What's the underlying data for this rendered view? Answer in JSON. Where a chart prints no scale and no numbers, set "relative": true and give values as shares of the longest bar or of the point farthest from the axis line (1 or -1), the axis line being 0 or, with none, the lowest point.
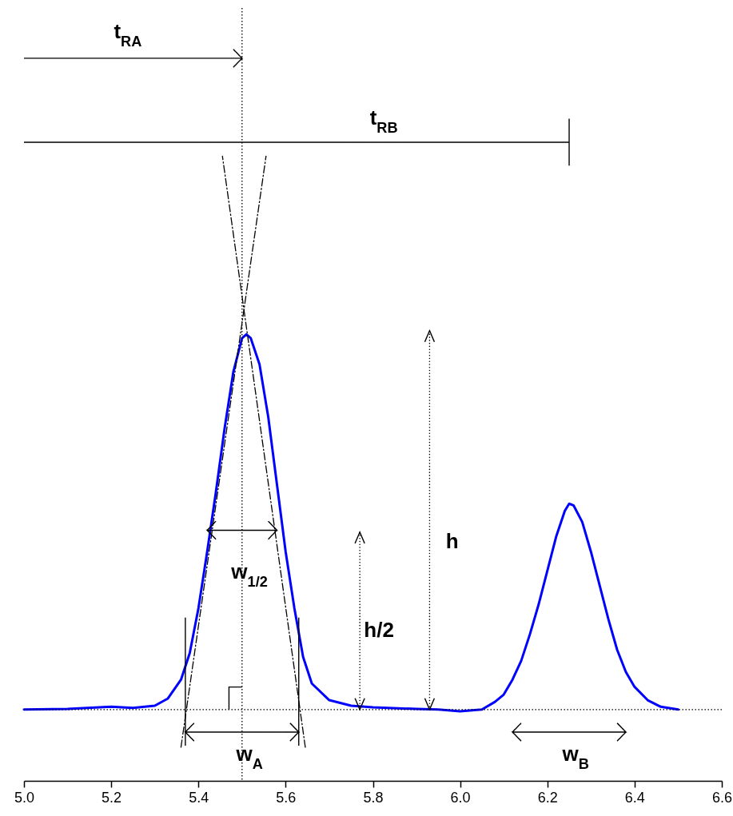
{
  "chart_data": {
    "type": "line",
    "relative": true,
    "xlim": [
      5.0,
      6.6
    ],
    "xticks": [
      {
        "value": 5.0,
        "label": "5.0"
      },
      {
        "value": 5.2,
        "label": "5.2"
      },
      {
        "value": 5.4,
        "label": "5.4"
      },
      {
        "value": 5.6,
        "label": "5.6"
      },
      {
        "value": 5.8,
        "label": "5.8"
      },
      {
        "value": 6.0,
        "label": "6.0"
      },
      {
        "value": 6.2,
        "label": "6.2"
      },
      {
        "value": 6.4,
        "label": "6.4"
      },
      {
        "value": 6.6,
        "label": "6.6"
      }
    ],
    "series": [
      {
        "color": "#0000ff",
        "x": [
          5.0,
          5.1,
          5.2,
          5.25,
          5.3,
          5.33,
          5.36,
          5.38,
          5.4,
          5.42,
          5.44,
          5.46,
          5.48,
          5.5,
          5.51,
          5.52,
          5.54,
          5.56,
          5.58,
          5.6,
          5.62,
          5.64,
          5.66,
          5.7,
          5.75,
          5.8,
          5.9,
          5.95,
          6.0,
          6.05,
          6.08,
          6.1,
          6.12,
          6.14,
          6.16,
          6.18,
          6.2,
          6.22,
          6.24,
          6.25,
          6.26,
          6.28,
          6.3,
          6.32,
          6.34,
          6.36,
          6.38,
          6.4,
          6.43,
          6.46,
          6.5
        ],
        "values": [
          0,
          0.001,
          0.005,
          0.003,
          0.007,
          0.02,
          0.054,
          0.102,
          0.183,
          0.285,
          0.393,
          0.508,
          0.61,
          0.671,
          0.678,
          0.671,
          0.624,
          0.529,
          0.407,
          0.285,
          0.183,
          0.095,
          0.047,
          0.017,
          0.007,
          0.004,
          0.001,
          0,
          -0.003,
          0,
          0.014,
          0.027,
          0.054,
          0.088,
          0.136,
          0.19,
          0.251,
          0.312,
          0.359,
          0.372,
          0.369,
          0.339,
          0.285,
          0.224,
          0.163,
          0.108,
          0.068,
          0.041,
          0.017,
          0.005,
          0
        ]
      },
      {
        "type": "line",
        "color": "#000000",
        "line_style": "dashed",
        "x": [
          5.36,
          5.555
        ],
        "values": [
          -0.068,
          1
        ]
      },
      {
        "type": "line",
        "color": "#000000",
        "line_style": "dashed",
        "x": [
          5.645,
          5.455
        ],
        "values": [
          -0.068,
          1
        ]
      }
    ],
    "ref_lines": [
      {
        "axis": "x",
        "value": 5.5,
        "line_style": "dotted"
      },
      {
        "axis": "y",
        "value": 0,
        "line_style": "dotted"
      }
    ],
    "annotations": [
      "t$_{RA}$",
      "t$_{RB}$",
      "w$_{1/2}$",
      "h/2",
      "h",
      "w$_{A}$",
      "w$_{B}$"
    ]
  }
}
